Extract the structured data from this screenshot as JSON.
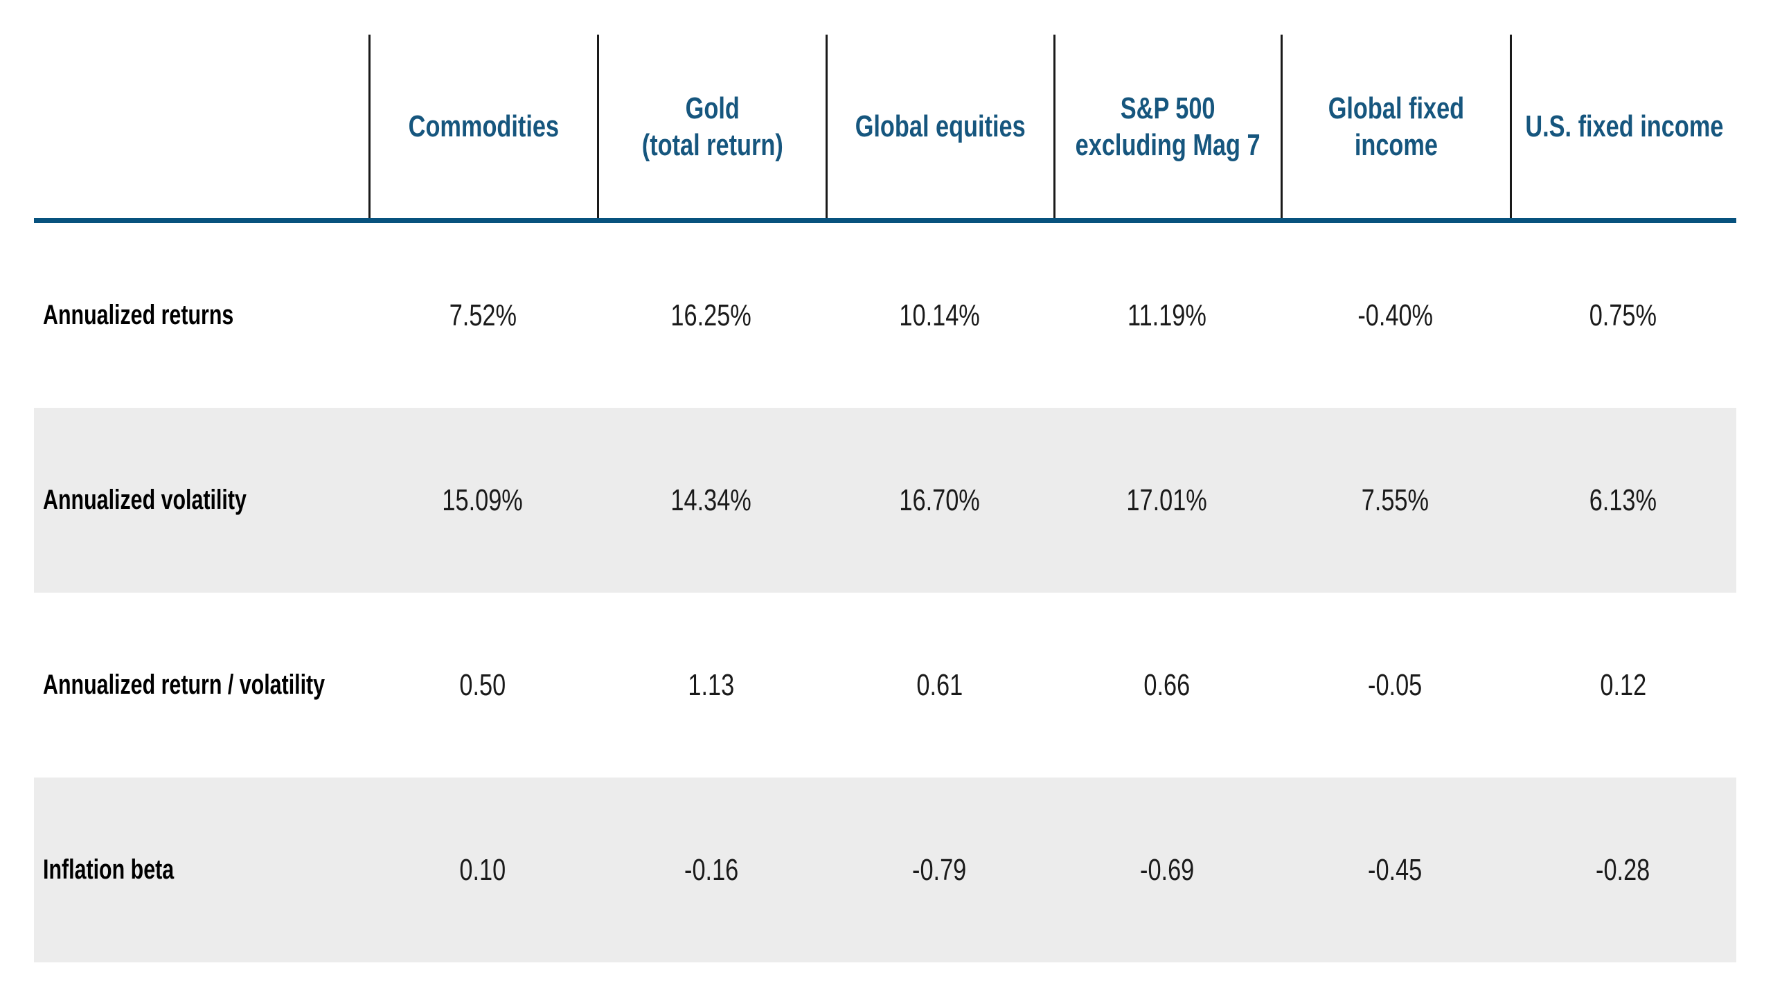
{
  "table": {
    "column_headers": [
      {
        "label": "Commodities"
      },
      {
        "label": "Gold\n(total return)"
      },
      {
        "label": "Global equities"
      },
      {
        "label": "S&P 500\nexcluding Mag 7"
      },
      {
        "label": "Global fixed\nincome"
      },
      {
        "label": "U.S. fixed income"
      }
    ],
    "rows": [
      {
        "label": "Annualized returns",
        "values": [
          "7.52%",
          "16.25%",
          "10.14%",
          "11.19%",
          "-0.40%",
          "0.75%"
        ]
      },
      {
        "label": "Annualized volatility",
        "values": [
          "15.09%",
          "14.34%",
          "16.70%",
          "17.01%",
          "7.55%",
          "6.13%"
        ]
      },
      {
        "label": "Annualized return / volatility",
        "values": [
          "0.50",
          "1.13",
          "0.61",
          "0.66",
          "-0.05",
          "0.12"
        ]
      },
      {
        "label": "Inflation beta",
        "values": [
          "0.10",
          "-0.16",
          "-0.79",
          "-0.69",
          "-0.45",
          "-0.28"
        ]
      }
    ],
    "colors": {
      "header_text": "#16567e",
      "header_rule": "#07527e",
      "column_divider": "#1a1a1a",
      "row_stripe": "#ececec",
      "row_label_text": "#000000",
      "value_text": "#1a1a1a",
      "background": "#ffffff"
    }
  },
  "chart_data": {
    "type": "table",
    "columns": [
      "Commodities",
      "Gold (total return)",
      "Global equities",
      "S&P 500 excluding Mag 7",
      "Global fixed income",
      "U.S. fixed income"
    ],
    "rows": [
      {
        "label": "Annualized returns",
        "values": [
          "7.52%",
          "16.25%",
          "10.14%",
          "11.19%",
          "-0.40%",
          "0.75%"
        ]
      },
      {
        "label": "Annualized volatility",
        "values": [
          "15.09%",
          "14.34%",
          "16.70%",
          "17.01%",
          "7.55%",
          "6.13%"
        ]
      },
      {
        "label": "Annualized return / volatility",
        "values": [
          0.5,
          1.13,
          0.61,
          0.66,
          -0.05,
          0.12
        ]
      },
      {
        "label": "Inflation beta",
        "values": [
          0.1,
          -0.16,
          -0.79,
          -0.69,
          -0.45,
          -0.28
        ]
      }
    ],
    "layout": {
      "stripe_rows": [
        "Annualized volatility",
        "Inflation beta"
      ],
      "header_text_color": "#16567e",
      "grid": "vertical-header-dividers-only"
    }
  }
}
